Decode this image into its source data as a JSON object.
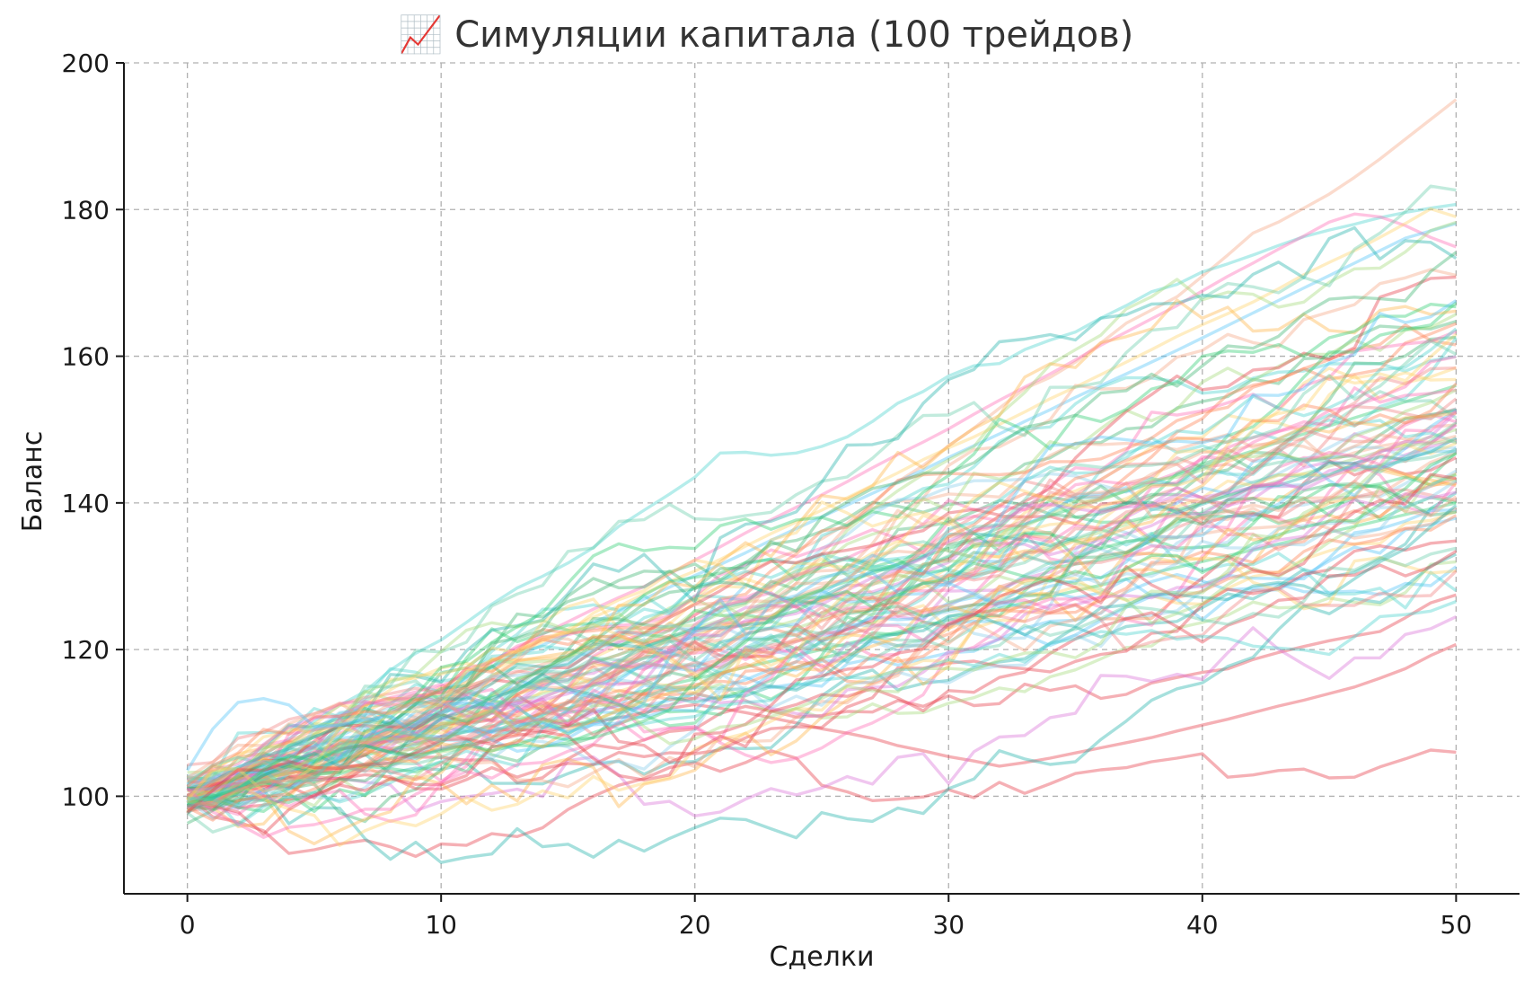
{
  "chart_data": {
    "type": "line",
    "title": "📈 Симуляции капитала (100 трейдов)",
    "xlabel": "Сделки",
    "ylabel": "Баланс",
    "xlim": [
      -2.5,
      52.5
    ],
    "ylim": [
      86.7,
      200
    ],
    "xticks": [
      0,
      10,
      20,
      30,
      40,
      50
    ],
    "yticks": [
      100,
      120,
      140,
      160,
      180,
      200
    ],
    "grid": true,
    "legend": "none",
    "x": [
      0,
      1,
      2,
      3,
      4,
      5,
      6,
      7,
      8,
      9,
      10,
      11,
      12,
      13,
      14,
      15,
      16,
      17,
      18,
      19,
      20,
      21,
      22,
      23,
      24,
      25,
      26,
      27,
      28,
      29,
      30,
      31,
      32,
      33,
      34,
      35,
      36,
      37,
      38,
      39,
      40,
      41,
      42,
      43,
      44,
      45,
      46,
      47,
      48,
      49,
      50
    ],
    "series_count": 100,
    "series": [
      {
        "color": "#f4a582",
        "values": [
          100.0,
          101.1,
          102.5,
          103.6,
          104.4,
          106.1,
          107.2,
          108.7,
          110.0,
          110.4,
          112.4,
          114.3,
          115.4,
          116.9,
          118.0,
          119.2,
          120.7,
          122.0,
          123.6,
          125.3,
          126.9,
          128.6,
          130.5,
          132.1,
          133.5,
          135.1,
          137.2,
          140.0,
          142.9,
          145.1,
          147.8,
          150.2,
          152.9,
          155.6,
          157.1,
          159.2,
          161.8,
          164.5,
          166.3,
          168.1,
          170.9,
          173.8,
          176.8,
          178.3,
          180.2,
          182.1,
          184.4,
          186.9,
          189.6,
          192.3,
          195.0
        ]
      },
      {
        "color": "#48d1cc",
        "values": [
          100.0,
          102.1,
          103.9,
          105.6,
          107.8,
          110.2,
          112.4,
          114.3,
          117.2,
          119.5,
          121.3,
          123.7,
          126.2,
          128.4,
          130.0,
          131.8,
          133.9,
          136.8,
          139.0,
          141.2,
          143.5,
          146.8,
          146.9,
          146.5,
          146.8,
          147.7,
          149.0,
          151.1,
          153.6,
          155.2,
          157.3,
          158.7,
          159.0,
          160.9,
          162.2,
          163.3,
          165.2,
          166.9,
          168.8,
          169.8,
          171.5,
          172.6,
          173.8,
          175.1,
          176.3,
          177.2,
          178.0,
          178.9,
          179.6,
          180.2,
          180.7
        ]
      },
      {
        "color": "#ff69b4",
        "values": [
          100.0,
          101.2,
          102.8,
          104.6,
          105.9,
          107.1,
          108.6,
          110.0,
          111.6,
          113.3,
          115.0,
          116.7,
          118.4,
          120.2,
          122.1,
          123.8,
          125.5,
          127.1,
          128.6,
          130.3,
          132.2,
          134.0,
          135.9,
          137.7,
          139.4,
          141.1,
          142.9,
          144.8,
          146.6,
          148.3,
          150.1,
          152.1,
          154.0,
          155.8,
          157.6,
          159.5,
          161.5,
          163.3,
          165.1,
          166.9,
          168.9,
          170.9,
          172.7,
          174.6,
          176.4,
          178.3,
          179.4,
          179.0,
          177.8,
          176.2,
          174.9
        ]
      },
      {
        "color": "#ffd166",
        "values": [
          100.0,
          101.4,
          102.5,
          103.9,
          105.2,
          106.8,
          108.4,
          110.1,
          111.6,
          113.0,
          114.8,
          116.3,
          117.7,
          119.4,
          121.1,
          122.8,
          124.4,
          125.9,
          127.6,
          129.3,
          130.7,
          132.3,
          134.1,
          135.8,
          137.4,
          139.0,
          140.7,
          142.4,
          144.1,
          145.9,
          147.5,
          149.0,
          150.7,
          152.4,
          154.2,
          155.8,
          157.5,
          159.2,
          160.9,
          162.7,
          164.3,
          165.8,
          167.4,
          169.2,
          171.1,
          172.8,
          174.4,
          176.2,
          178.1,
          180.1,
          179.0
        ]
      },
      {
        "color": "#4fc3f7",
        "values": [
          100.0,
          101.3,
          102.7,
          104.1,
          105.4,
          106.9,
          108.2,
          109.8,
          111.4,
          112.9,
          114.3,
          115.9,
          117.6,
          119.1,
          120.6,
          122.2,
          123.7,
          125.2,
          126.9,
          128.5,
          130.1,
          131.6,
          133.2,
          134.9,
          136.5,
          138.1,
          139.7,
          141.3,
          142.9,
          144.5,
          146.2,
          147.8,
          149.4,
          151.1,
          152.7,
          154.4,
          156.0,
          157.6,
          159.2,
          160.8,
          162.5,
          164.2,
          165.9,
          167.6,
          169.3,
          171.0,
          172.7,
          174.4,
          176.1,
          177.1,
          178.1
        ]
      },
      {
        "color": "#e63946",
        "values": [
          100.0,
          100.7,
          101.3,
          101.9,
          102.6,
          103.2,
          103.9,
          104.4,
          105.1,
          105.8,
          106.4,
          107.0,
          107.6,
          108.3,
          108.8,
          109.5,
          110.1,
          110.7,
          111.4,
          112.0,
          112.5,
          112.0,
          111.4,
          110.7,
          110.0,
          109.2,
          108.6,
          107.9,
          106.9,
          106.2,
          105.4,
          104.8,
          104.1,
          104.6,
          105.2,
          105.9,
          106.6,
          107.3,
          108.0,
          108.9,
          109.7,
          110.5,
          111.4,
          112.3,
          113.1,
          114.0,
          114.9,
          116.1,
          117.4,
          119.2,
          120.7
        ]
      },
      {
        "color": "#e63946",
        "values": [
          100.0,
          97.2,
          96.5,
          95.3,
          92.2,
          92.7,
          93.5,
          94.0,
          93.1,
          91.8,
          93.5,
          93.3,
          94.9,
          94.5,
          95.7,
          98.2,
          100.0,
          101.5,
          102.4,
          103.9,
          104.6,
          103.4,
          104.6,
          106.2,
          105.2,
          101.5,
          100.6,
          99.4,
          99.6,
          99.9,
          100.9,
          99.8,
          101.9,
          100.4,
          101.7,
          103.1,
          103.6,
          103.9,
          104.7,
          105.2,
          105.8,
          102.6,
          102.9,
          103.5,
          103.7,
          102.5,
          102.6,
          104.0,
          105.1,
          106.3,
          106.0
        ]
      },
      {
        "color": "#2ecc71",
        "values": [
          100.0,
          101.2,
          102.3,
          103.5,
          104.6,
          105.8,
          106.9,
          108.0,
          109.2,
          110.3,
          111.4,
          112.5,
          113.7,
          114.8,
          115.9,
          117.0,
          118.2,
          119.3,
          120.4,
          121.5,
          122.6,
          123.7,
          124.9,
          126.0,
          127.1,
          128.2,
          129.3,
          130.4,
          131.6,
          132.7,
          133.8,
          134.9,
          136.0,
          137.1,
          138.2,
          139.4,
          140.5,
          141.6,
          142.7,
          143.8,
          144.9,
          146.0,
          147.1,
          148.3,
          149.4,
          150.5,
          151.6,
          152.7,
          153.8,
          154.9,
          156.0
        ]
      },
      {
        "color": "#2ecc71",
        "values": [
          100.0,
          100.8,
          101.6,
          102.4,
          103.2,
          104.0,
          104.8,
          105.6,
          106.4,
          107.2,
          108.0,
          108.8,
          109.6,
          110.4,
          111.2,
          112.0,
          112.8,
          113.6,
          114.4,
          115.2,
          116.0,
          116.8,
          117.6,
          118.4,
          119.2,
          120.0,
          120.8,
          121.6,
          122.4,
          123.2,
          124.0,
          124.8,
          125.6,
          126.4,
          127.2,
          128.0,
          128.8,
          129.6,
          130.4,
          131.2,
          132.0,
          132.8,
          133.6,
          134.4,
          135.2,
          136.0,
          136.8,
          137.6,
          138.4,
          139.2,
          140.0
        ]
      },
      {
        "color": "#a3d977",
        "values": [
          100.0,
          101.0,
          102.0,
          103.0,
          104.0,
          105.0,
          106.0,
          107.0,
          108.0,
          109.0,
          110.0,
          111.0,
          112.0,
          113.0,
          114.0,
          115.0,
          116.0,
          117.0,
          118.0,
          119.0,
          120.0,
          121.0,
          122.0,
          123.0,
          124.0,
          125.0,
          126.0,
          127.0,
          128.0,
          129.0,
          130.0,
          131.0,
          132.0,
          133.0,
          134.0,
          135.0,
          136.0,
          137.0,
          138.0,
          139.0,
          140.0,
          141.0,
          142.0,
          143.0,
          144.0,
          145.0,
          146.0,
          147.0,
          148.0,
          149.0,
          150.0
        ]
      }
    ]
  }
}
